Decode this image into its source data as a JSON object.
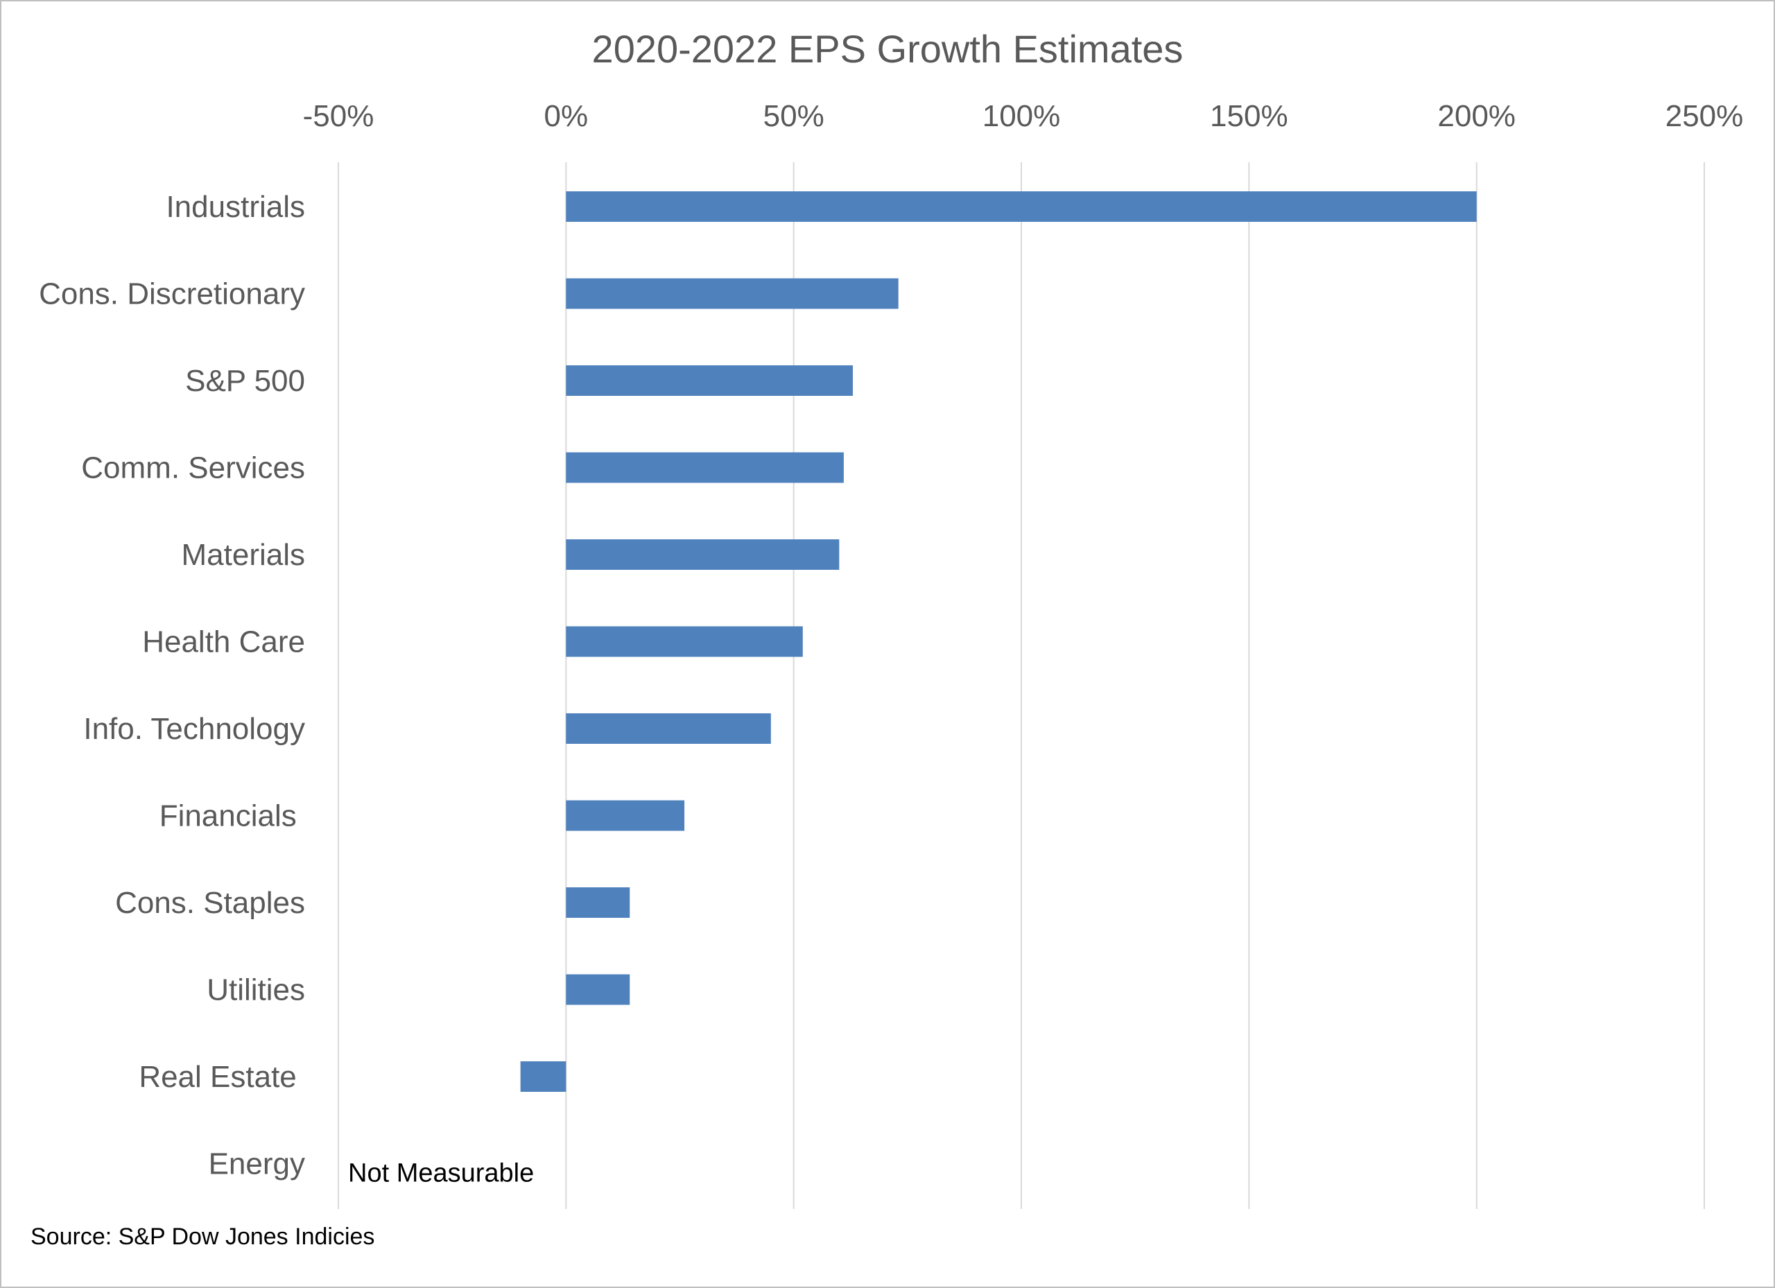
{
  "chart_data": {
    "type": "bar",
    "orientation": "horizontal",
    "title": "2020-2022 EPS Growth Estimates",
    "xlabel": "",
    "ylabel": "",
    "x_ticks": [
      "-50%",
      "0%",
      "50%",
      "100%",
      "150%",
      "200%",
      "250%"
    ],
    "x_tick_values": [
      -50,
      0,
      50,
      100,
      150,
      200,
      250
    ],
    "xlim": [
      -50,
      250
    ],
    "axis_position": "top",
    "grid": true,
    "legend": "none",
    "bar_color": "#4f81bd",
    "grid_color": "#d9d9d9",
    "text_color": "#595959",
    "categories": [
      "Industrials",
      "Cons. Discretionary",
      "S&P 500",
      "Comm. Services",
      "Materials",
      "Health Care",
      "Info. Technology",
      "Financials ",
      "Cons. Staples",
      "Utilities",
      "Real Estate ",
      "Energy"
    ],
    "values": [
      200,
      73,
      63,
      61,
      60,
      52,
      45,
      26,
      14,
      14,
      -10,
      null
    ],
    "annotations": [
      {
        "category": "Energy",
        "text": "Not Measurable"
      }
    ],
    "source": "Source: S&P Dow Jones Indicies"
  }
}
